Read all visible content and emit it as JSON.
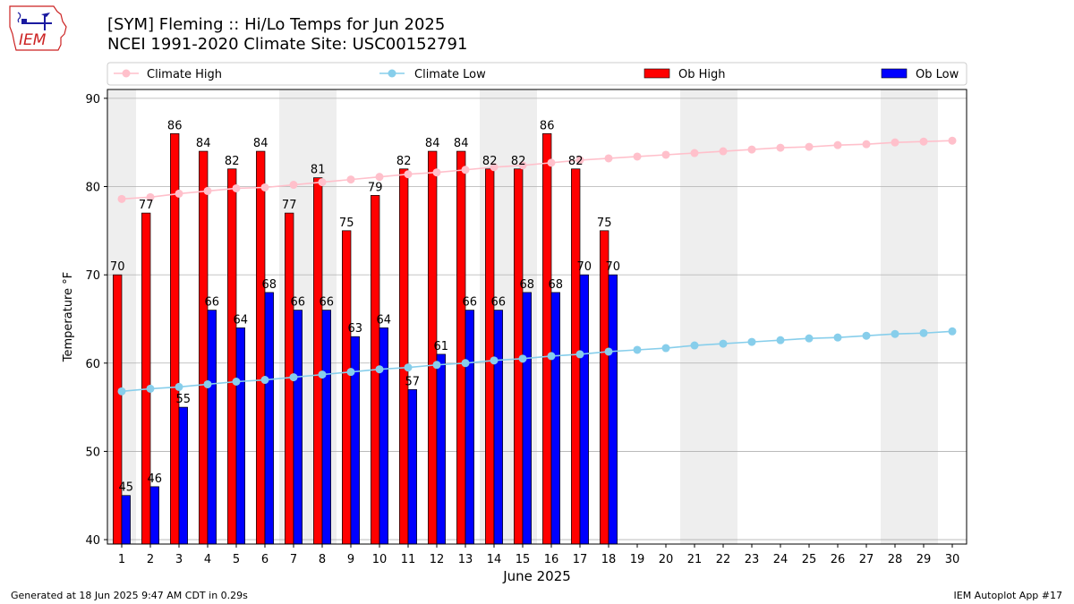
{
  "header": {
    "title_line1": "[SYM] Fleming :: Hi/Lo Temps for Jun 2025",
    "title_line2": "NCEI 1991-2020 Climate Site: USC00152791",
    "logo_text": "IEM"
  },
  "footer": {
    "generated": "Generated at 18 Jun 2025 9:47 AM CDT in 0.29s",
    "app": "IEM Autoplot App #17"
  },
  "colors": {
    "ob_high": "#ff0000",
    "ob_low": "#0000ff",
    "climate_high": "#ffc0cb",
    "climate_low": "#87ceeb",
    "weekend_shade": "#eeeeee",
    "grid": "#b0b0b0"
  },
  "chart_data": {
    "type": "bar",
    "xlabel": "June 2025",
    "ylabel": "Temperature °F",
    "ylim": [
      39.5,
      91
    ],
    "yticks": [
      40,
      50,
      60,
      70,
      80,
      90
    ],
    "xlim": [
      0.5,
      30.5
    ],
    "categories": [
      "1",
      "2",
      "3",
      "4",
      "5",
      "6",
      "7",
      "8",
      "9",
      "10",
      "11",
      "12",
      "13",
      "14",
      "15",
      "16",
      "17",
      "18",
      "19",
      "20",
      "21",
      "22",
      "23",
      "24",
      "25",
      "26",
      "27",
      "28",
      "29",
      "30"
    ],
    "weekend_days": [
      1,
      7,
      8,
      14,
      15,
      21,
      22,
      28,
      29
    ],
    "grid": "horizontal",
    "legend_position": "top",
    "legend": [
      "Climate High",
      "Climate Low",
      "Ob High",
      "Ob Low"
    ],
    "series": [
      {
        "name": "Ob High",
        "kind": "bar",
        "values": [
          70,
          77,
          86,
          84,
          82,
          84,
          77,
          81,
          75,
          79,
          82,
          84,
          84,
          82,
          82,
          86,
          82,
          75,
          null,
          null,
          null,
          null,
          null,
          null,
          null,
          null,
          null,
          null,
          null,
          null
        ]
      },
      {
        "name": "Ob Low",
        "kind": "bar",
        "values": [
          45,
          46,
          55,
          66,
          64,
          68,
          66,
          66,
          63,
          64,
          57,
          61,
          66,
          66,
          68,
          68,
          70,
          70,
          null,
          null,
          null,
          null,
          null,
          null,
          null,
          null,
          null,
          null,
          null,
          null
        ]
      },
      {
        "name": "Climate High",
        "kind": "line",
        "values": [
          78.6,
          78.8,
          79.2,
          79.5,
          79.8,
          79.9,
          80.2,
          80.5,
          80.8,
          81.1,
          81.4,
          81.6,
          81.9,
          82.2,
          82.4,
          82.7,
          83.0,
          83.2,
          83.4,
          83.6,
          83.8,
          84.0,
          84.2,
          84.4,
          84.5,
          84.7,
          84.8,
          85.0,
          85.1,
          85.2
        ]
      },
      {
        "name": "Climate Low",
        "kind": "line",
        "values": [
          56.8,
          57.1,
          57.3,
          57.6,
          57.9,
          58.1,
          58.4,
          58.7,
          59.0,
          59.3,
          59.5,
          59.8,
          60.0,
          60.3,
          60.5,
          60.8,
          61.0,
          61.3,
          61.5,
          61.7,
          62.0,
          62.2,
          62.4,
          62.6,
          62.8,
          62.9,
          63.1,
          63.3,
          63.4,
          63.6
        ]
      }
    ]
  }
}
